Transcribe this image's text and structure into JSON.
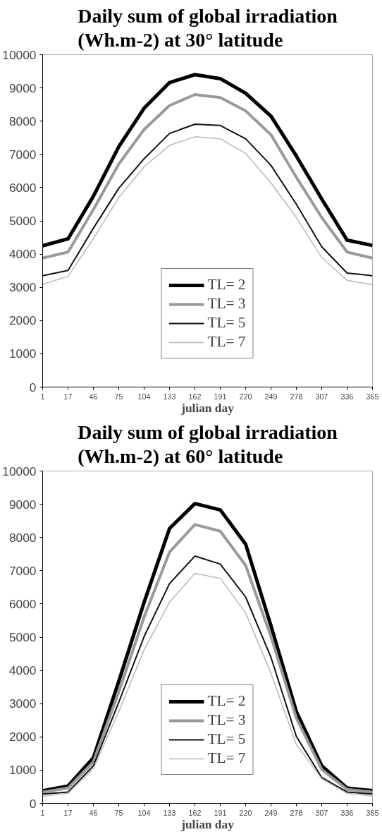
{
  "chart_data": [
    {
      "type": "line",
      "title": "Daily sum of global irradiation\n(Wh.m-2) at 30° latitude",
      "xlabel": "julian day",
      "categories": [
        "1",
        "17",
        "46",
        "75",
        "104",
        "133",
        "162",
        "191",
        "220",
        "249",
        "278",
        "307",
        "336",
        "365"
      ],
      "ylim": [
        0,
        10000
      ],
      "yticks": [
        0,
        1000,
        2000,
        3000,
        4000,
        5000,
        6000,
        7000,
        8000,
        9000,
        10000
      ],
      "grid": false,
      "legend": "bottom",
      "marker": "none",
      "series": [
        {
          "name": "TL= 2",
          "color": "#000000",
          "values": [
            4250,
            4460,
            5740,
            7230,
            8390,
            9160,
            9400,
            9280,
            8840,
            8150,
            6950,
            5660,
            4420,
            4260
          ]
        },
        {
          "name": "TL= 3",
          "color": "#999999",
          "values": [
            3880,
            4060,
            5340,
            6710,
            7750,
            8470,
            8800,
            8710,
            8310,
            7590,
            6310,
            5100,
            4060,
            3880
          ]
        },
        {
          "name": "TL= 5",
          "color": "#111111",
          "values": [
            3350,
            3510,
            4780,
            5980,
            6870,
            7630,
            7910,
            7870,
            7470,
            6670,
            5500,
            4220,
            3430,
            3350
          ]
        },
        {
          "name": "TL= 7",
          "color": "#b8b8b8",
          "values": [
            3090,
            3330,
            4460,
            5700,
            6630,
            7270,
            7530,
            7470,
            7030,
            6140,
            5100,
            3900,
            3210,
            3080
          ]
        }
      ]
    },
    {
      "type": "line",
      "title": "Daily sum of global irradiation\n(Wh.m-2) at 60° latitude",
      "xlabel": "julian day",
      "categories": [
        "1",
        "17",
        "46",
        "75",
        "104",
        "133",
        "162",
        "191",
        "220",
        "249",
        "278",
        "307",
        "336",
        "365"
      ],
      "ylim": [
        0,
        10000
      ],
      "yticks": [
        0,
        1000,
        2000,
        3000,
        4000,
        5000,
        6000,
        7000,
        8000,
        9000,
        10000
      ],
      "grid": false,
      "legend": "bottom",
      "marker": "none",
      "series": [
        {
          "name": "TL= 2",
          "color": "#000000",
          "values": [
            380,
            520,
            1370,
            3670,
            6050,
            8270,
            9020,
            8830,
            7800,
            5340,
            2760,
            1130,
            460,
            380
          ]
        },
        {
          "name": "TL= 3",
          "color": "#999999",
          "values": [
            340,
            460,
            1250,
            3350,
            5610,
            7560,
            8390,
            8190,
            7160,
            5020,
            2560,
            1020,
            420,
            340
          ]
        },
        {
          "name": "TL= 5",
          "color": "#111111",
          "values": [
            280,
            340,
            1130,
            3040,
            5020,
            6610,
            7440,
            7200,
            6210,
            4390,
            2010,
            780,
            340,
            280
          ]
        },
        {
          "name": "TL= 7",
          "color": "#b8b8b8",
          "values": [
            220,
            300,
            1050,
            2760,
            4620,
            6050,
            6920,
            6770,
            5730,
            3910,
            1770,
            740,
            300,
            220
          ]
        }
      ]
    }
  ]
}
